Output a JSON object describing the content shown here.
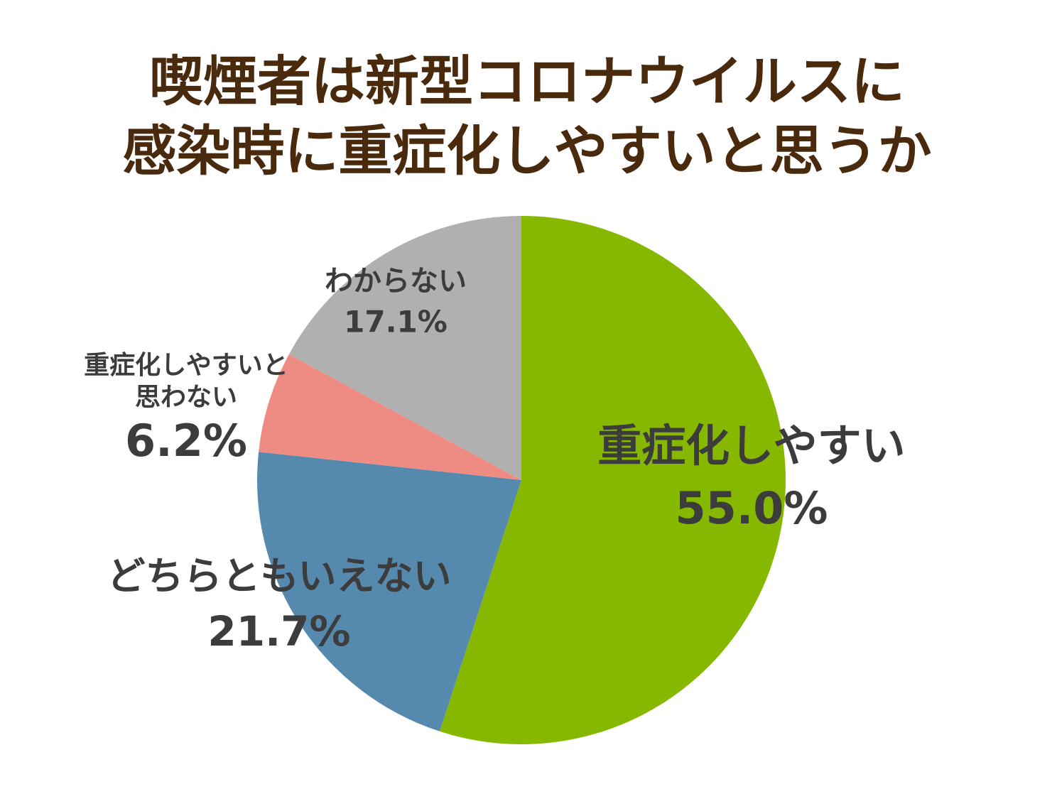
{
  "chart_data": {
    "type": "pie",
    "title": [
      "喫煙者は新型コロナウイルスに",
      "感染時に重症化しやすいと思うか"
    ],
    "categories": [
      "重症化しやすい",
      "どちらともいえない",
      "重症化しやすいと思わない",
      "わからない"
    ],
    "values": [
      55.0,
      21.7,
      6.2,
      17.1
    ],
    "value_labels": [
      "55.0%",
      "21.7%",
      "6.2%",
      "17.1%"
    ],
    "colors": [
      "#86b800",
      "#5689ae",
      "#ee8c84",
      "#b0b0b0"
    ]
  }
}
